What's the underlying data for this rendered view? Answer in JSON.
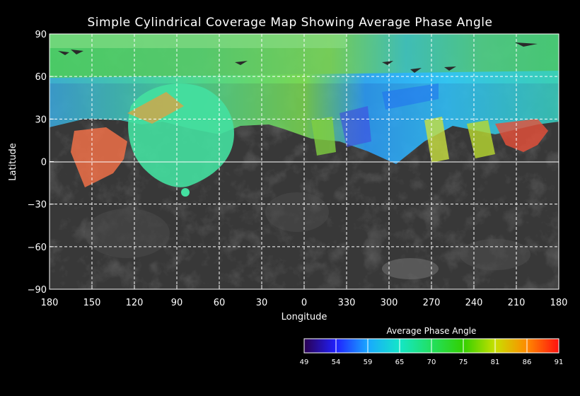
{
  "title": "Simple Cylindrical Coverage Map Showing Average Phase Angle",
  "map": {
    "projection": "simple cylindrical",
    "x_axis_label": "Longitude",
    "y_axis_label": "Latitude",
    "longitude_ticks": [
      "180",
      "150",
      "120",
      "90",
      "60",
      "30",
      "0",
      "330",
      "300",
      "270",
      "240",
      "210",
      "180"
    ],
    "latitude_ticks": [
      "90",
      "60",
      "30",
      "0",
      "−30",
      "−60",
      "−90"
    ],
    "grid": "dashed white lines every 30 degrees",
    "basemap_color": "#5a5a5a",
    "coverage_note_visible": false
  },
  "colorbar": {
    "title": "Average Phase Angle",
    "ticks": [
      "49",
      "54",
      "59",
      "65",
      "70",
      "75",
      "81",
      "86",
      "91"
    ],
    "colors": [
      "#2a0050",
      "#2020ff",
      "#19a8ff",
      "#14e6c8",
      "#22e060",
      "#32d000",
      "#c8e000",
      "#ff8a00",
      "#ff1010"
    ]
  },
  "chart_data": {
    "type": "heatmap",
    "title": "Simple Cylindrical Coverage Map Showing Average Phase Angle",
    "xlabel": "Longitude",
    "ylabel": "Latitude",
    "x_tick_labels": [
      "180",
      "150",
      "120",
      "90",
      "60",
      "30",
      "0",
      "330",
      "300",
      "270",
      "240",
      "210",
      "180"
    ],
    "y_tick_labels": [
      "90",
      "60",
      "30",
      "0",
      "−30",
      "−60",
      "−90"
    ],
    "xlim": [
      180,
      -180
    ],
    "ylim": [
      -90,
      90
    ],
    "value_range": [
      49,
      91
    ],
    "colorbar_ticks": [
      49,
      54,
      59,
      65,
      70,
      75,
      81,
      86,
      91
    ],
    "grid": true,
    "coverage": {
      "northern_band_average_phase": 70,
      "equatorial_patch_centered_lon": 90,
      "equatorial_patch_average_phase": 72,
      "southern_hemisphere_covered": false
    }
  }
}
